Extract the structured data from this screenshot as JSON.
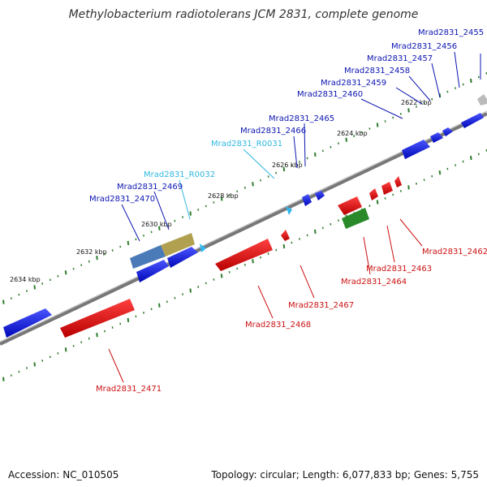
{
  "title": "Methylobacterium radiotolerans JCM 2831, complete genome",
  "footer": {
    "accession": "Accession: NC_010505",
    "summary": "Topology: circular; Length: 6,077,833 bp; Genes: 5,755"
  },
  "colors": {
    "forward_gene": "#0b14d8",
    "reverse_gene": "#dd0e0e",
    "rna_gene": "#30b8f0",
    "pseudo_gene": "#bbbbbb",
    "forward_label": "#0b14b0",
    "reverse_label": "#cc1010",
    "rna_label": "#30b8e0",
    "axis": "#808080",
    "ticks": "#2e7d2e"
  },
  "kbp_ticks": [
    "2622 kbp",
    "2624 kbp",
    "2626 kbp",
    "2628 kbp",
    "2630 kbp",
    "2632 kbp",
    "2634 kbp"
  ],
  "forward_labels": [
    "Mrad2831_2455",
    "Mrad2831_2456",
    "Mrad2831_2457",
    "Mrad2831_2458",
    "Mrad2831_2459",
    "Mrad2831_2460",
    "Mrad2831_2465",
    "Mrad2831_2466",
    "Mrad2831_2469",
    "Mrad2831_2470"
  ],
  "rna_labels": [
    "Mrad2831_R0031",
    "Mrad2831_R0032"
  ],
  "reverse_labels": [
    "Mrad2831_2462",
    "Mrad2831_2463",
    "Mrad2831_2464",
    "Mrad2831_2467",
    "Mrad2831_2468",
    "Mrad2831_2471"
  ]
}
